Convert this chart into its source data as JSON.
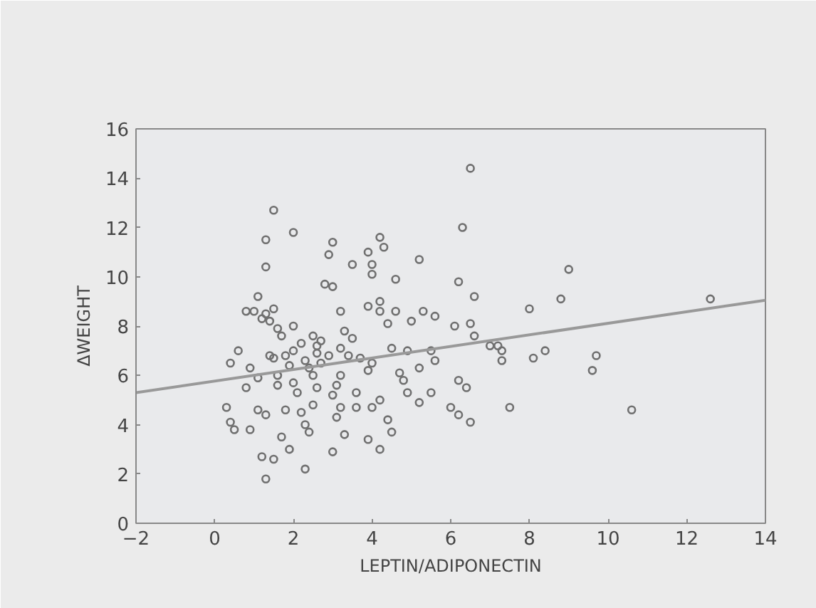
{
  "chart_data": {
    "type": "scatter",
    "xlabel": "LEPTIN/ADIPONECTIN",
    "ylabel": "ΔWEIGHT",
    "xlim": [
      -2,
      14
    ],
    "ylim": [
      0,
      16
    ],
    "xticks": [
      -2,
      0,
      2,
      4,
      6,
      8,
      10,
      12,
      14
    ],
    "yticks": [
      0,
      2,
      4,
      6,
      8,
      10,
      12,
      14,
      16
    ],
    "grid": false,
    "series": [
      {
        "marker": "circle",
        "color": "#707070",
        "x": [
          6.5,
          1.5,
          1.3,
          2.0,
          6.3,
          4.2,
          4.3,
          3.0,
          2.9,
          1.3,
          3.5,
          4.0,
          5.2,
          3.9,
          4.0,
          2.8,
          3.0,
          4.6,
          6.2,
          6.6,
          9.0,
          1.1,
          1.5,
          0.8,
          1.0,
          1.3,
          1.2,
          1.4,
          2.0,
          3.2,
          4.2,
          4.6,
          5.3,
          5.0,
          4.2,
          3.9,
          5.6,
          6.1,
          6.5,
          8.0,
          8.8,
          12.6,
          2.5,
          3.3,
          1.7,
          0.6,
          1.4,
          2.0,
          2.6,
          3.5,
          4.5,
          4.9,
          5.5,
          6.6,
          7.0,
          7.2,
          7.3,
          8.1,
          8.4,
          9.7,
          9.6,
          7.3,
          6.2,
          5.6,
          5.2,
          4.7,
          4.8,
          3.9,
          3.2,
          2.4,
          2.5,
          2.0,
          1.6,
          0.9,
          0.4,
          1.1,
          1.6,
          2.1,
          2.6,
          3.1,
          3.0,
          3.6,
          4.2,
          4.9,
          5.2,
          5.5,
          6.4,
          6.0,
          6.2,
          6.5,
          7.5,
          10.6,
          0.4,
          0.3,
          1.1,
          1.3,
          1.8,
          2.2,
          2.5,
          3.2,
          3.1,
          3.6,
          4.0,
          4.4,
          4.5,
          3.3,
          3.9,
          4.2,
          3.0,
          2.4,
          1.7,
          1.9,
          1.2,
          1.5,
          2.3,
          1.3,
          0.9,
          0.5,
          2.3,
          2.7,
          2.9,
          2.6,
          1.8,
          1.6,
          2.7,
          4.0,
          3.7,
          3.4,
          2.3,
          1.9,
          2.2,
          1.5,
          4.4,
          3.2,
          0.8
        ],
        "values": [
          14.4,
          12.7,
          11.5,
          11.8,
          12.0,
          11.6,
          11.2,
          11.4,
          10.9,
          10.4,
          10.5,
          10.5,
          10.7,
          11.0,
          10.1,
          9.7,
          9.6,
          9.9,
          9.8,
          9.2,
          10.3,
          9.2,
          8.7,
          8.6,
          8.6,
          8.5,
          8.3,
          8.2,
          8.0,
          8.6,
          8.6,
          8.6,
          8.6,
          8.2,
          9.0,
          8.8,
          8.4,
          8.0,
          8.1,
          8.7,
          9.1,
          9.1,
          7.6,
          7.8,
          7.6,
          7.0,
          6.8,
          7.0,
          7.2,
          7.5,
          7.1,
          7.0,
          7.0,
          7.6,
          7.2,
          7.2,
          7.0,
          6.7,
          7.0,
          6.8,
          6.2,
          6.6,
          5.8,
          6.6,
          6.3,
          6.1,
          5.8,
          6.2,
          6.0,
          6.3,
          6.0,
          5.7,
          6.0,
          6.3,
          6.5,
          5.9,
          5.6,
          5.3,
          5.5,
          5.6,
          5.2,
          5.3,
          5.0,
          5.3,
          4.9,
          5.3,
          5.5,
          4.7,
          4.4,
          4.1,
          4.7,
          4.6,
          4.1,
          4.7,
          4.6,
          4.4,
          4.6,
          4.5,
          4.8,
          4.7,
          4.3,
          4.7,
          4.7,
          4.2,
          3.7,
          3.6,
          3.4,
          3.0,
          2.9,
          3.7,
          3.5,
          3.0,
          2.7,
          2.6,
          2.2,
          1.8,
          3.8,
          3.8,
          4.0,
          6.5,
          6.8,
          6.9,
          6.8,
          7.9,
          7.4,
          6.5,
          6.7,
          6.8,
          6.6,
          6.4,
          7.3,
          6.7,
          8.1,
          7.1,
          5.5
        ]
      },
      {
        "type": "line",
        "color": "#999999",
        "x": [
          -2,
          14
        ],
        "values": [
          5.3,
          9.05
        ]
      }
    ]
  }
}
